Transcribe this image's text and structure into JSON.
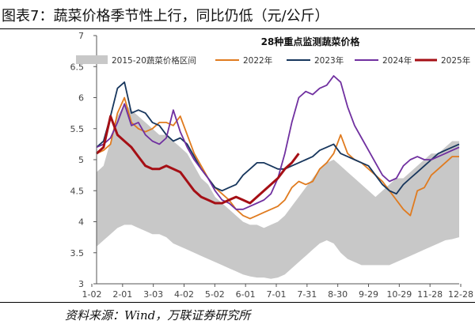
{
  "figure": {
    "title": "图表7：蔬菜价格季节性上行，同比仍低（元/公斤）",
    "source": "资料来源：Wind，万联证券研究所"
  },
  "colors": {
    "band": "#c8c8c8",
    "s2022": "#e07b1f",
    "s2023": "#17365d",
    "s2024": "#7030a0",
    "s2025": "#a50f15"
  },
  "chart_data": {
    "type": "line",
    "title": "28种重点监测蔬菜价格",
    "xlabel": "",
    "ylabel": "",
    "ylim": [
      3,
      7
    ],
    "yticks": [
      "3",
      "3.5",
      "4",
      "4.5",
      "5",
      "5.5",
      "6",
      "6.5",
      "7"
    ],
    "xticks": [
      "1-02",
      "2-01",
      "3-03",
      "4-02",
      "5-02",
      "6-01",
      "7-01",
      "7-31",
      "8-30",
      "9-29",
      "10-29",
      "11-28",
      "12-28"
    ],
    "x": [
      "1-02",
      "1-09",
      "1-16",
      "1-23",
      "1-30",
      "2-06",
      "2-13",
      "2-20",
      "2-27",
      "3-06",
      "3-13",
      "3-20",
      "3-27",
      "4-03",
      "4-10",
      "4-17",
      "4-24",
      "5-01",
      "5-08",
      "5-15",
      "5-22",
      "5-29",
      "6-05",
      "6-12",
      "6-19",
      "6-26",
      "7-03",
      "7-10",
      "7-17",
      "7-24",
      "7-31",
      "8-07",
      "8-14",
      "8-21",
      "8-28",
      "9-04",
      "9-11",
      "9-18",
      "9-25",
      "10-02",
      "10-09",
      "10-16",
      "10-23",
      "10-30",
      "11-06",
      "11-13",
      "11-20",
      "11-27",
      "12-04",
      "12-11",
      "12-18",
      "12-25",
      "12-28"
    ],
    "band": {
      "name": "2015-20蔬菜价格区间",
      "upper": [
        4.8,
        4.9,
        5.3,
        5.7,
        5.9,
        5.8,
        5.7,
        5.6,
        5.5,
        5.4,
        5.4,
        5.3,
        5.2,
        5.1,
        4.9,
        4.7,
        4.6,
        4.4,
        4.3,
        4.2,
        4.1,
        4.0,
        3.95,
        3.95,
        3.9,
        3.95,
        4.0,
        4.1,
        4.25,
        4.4,
        4.55,
        4.7,
        4.85,
        4.95,
        5.0,
        4.9,
        4.8,
        4.7,
        4.6,
        4.5,
        4.4,
        4.5,
        4.6,
        4.7,
        4.7,
        4.8,
        4.9,
        5.0,
        5.1,
        5.1,
        5.2,
        5.3,
        5.3
      ],
      "lower": [
        3.6,
        3.7,
        3.8,
        3.9,
        3.95,
        3.95,
        3.9,
        3.85,
        3.8,
        3.8,
        3.75,
        3.65,
        3.6,
        3.55,
        3.5,
        3.45,
        3.4,
        3.35,
        3.3,
        3.25,
        3.2,
        3.15,
        3.12,
        3.1,
        3.1,
        3.08,
        3.1,
        3.15,
        3.25,
        3.35,
        3.45,
        3.55,
        3.65,
        3.7,
        3.65,
        3.5,
        3.4,
        3.35,
        3.3,
        3.3,
        3.3,
        3.3,
        3.3,
        3.35,
        3.4,
        3.45,
        3.5,
        3.55,
        3.6,
        3.65,
        3.7,
        3.72,
        3.75
      ]
    },
    "series": [
      {
        "name": "2022年",
        "values": [
          5.1,
          5.15,
          5.25,
          5.75,
          6.0,
          5.6,
          5.5,
          5.45,
          5.5,
          5.6,
          5.6,
          5.55,
          5.7,
          5.4,
          5.1,
          4.9,
          4.7,
          4.55,
          4.45,
          4.35,
          4.2,
          4.1,
          4.05,
          4.1,
          4.15,
          4.2,
          4.25,
          4.35,
          4.55,
          4.65,
          4.6,
          4.65,
          4.85,
          4.95,
          5.1,
          5.4,
          5.1,
          5.0,
          4.95,
          4.85,
          4.75,
          4.65,
          4.5,
          4.35,
          4.2,
          4.1,
          4.5,
          4.55,
          4.75,
          4.85,
          4.95,
          5.05,
          5.05
        ]
      },
      {
        "name": "2023年",
        "values": [
          5.2,
          5.3,
          5.7,
          6.15,
          6.25,
          5.75,
          5.8,
          5.75,
          5.6,
          5.55,
          5.4,
          5.3,
          5.35,
          5.25,
          5.05,
          4.85,
          4.7,
          4.55,
          4.5,
          4.55,
          4.6,
          4.75,
          4.85,
          4.95,
          4.95,
          4.9,
          4.85,
          4.85,
          4.9,
          4.95,
          5.0,
          5.05,
          5.15,
          5.2,
          5.25,
          5.1,
          5.05,
          5.0,
          4.95,
          4.9,
          4.75,
          4.6,
          4.5,
          4.45,
          4.6,
          4.7,
          4.8,
          4.9,
          5.0,
          5.1,
          5.15,
          5.2,
          5.25
        ]
      },
      {
        "name": "2024年",
        "values": [
          5.2,
          5.25,
          5.35,
          5.6,
          5.9,
          5.55,
          5.6,
          5.4,
          5.3,
          5.25,
          5.35,
          5.8,
          5.45,
          5.2,
          5.0,
          4.85,
          4.7,
          4.5,
          4.35,
          4.3,
          4.2,
          4.2,
          4.25,
          4.3,
          4.35,
          4.45,
          4.7,
          5.1,
          5.6,
          6.0,
          6.1,
          6.05,
          6.15,
          6.2,
          6.35,
          6.25,
          5.85,
          5.55,
          5.35,
          5.15,
          4.95,
          4.75,
          4.65,
          4.7,
          4.9,
          5.0,
          5.05,
          5.0,
          5.0,
          5.05,
          5.1,
          5.15,
          5.2
        ]
      },
      {
        "name": "2025年",
        "values": [
          5.1,
          5.2,
          5.7,
          5.4,
          5.3,
          5.2,
          5.05,
          4.9,
          4.85,
          4.85,
          4.9,
          4.85,
          4.8,
          4.65,
          4.5,
          4.4,
          4.35,
          4.3,
          4.3,
          4.35,
          4.4,
          4.35,
          4.3,
          4.4,
          4.5,
          4.6,
          4.7,
          4.85,
          4.95,
          5.1,
          null,
          null,
          null,
          null,
          null,
          null,
          null,
          null,
          null,
          null,
          null,
          null,
          null,
          null,
          null,
          null,
          null,
          null,
          null,
          null,
          null,
          null,
          null
        ]
      }
    ],
    "legend": [
      "2015-20蔬菜价格区间",
      "2022年",
      "2023年",
      "2024年",
      "2025年"
    ],
    "legend_position": "top"
  }
}
